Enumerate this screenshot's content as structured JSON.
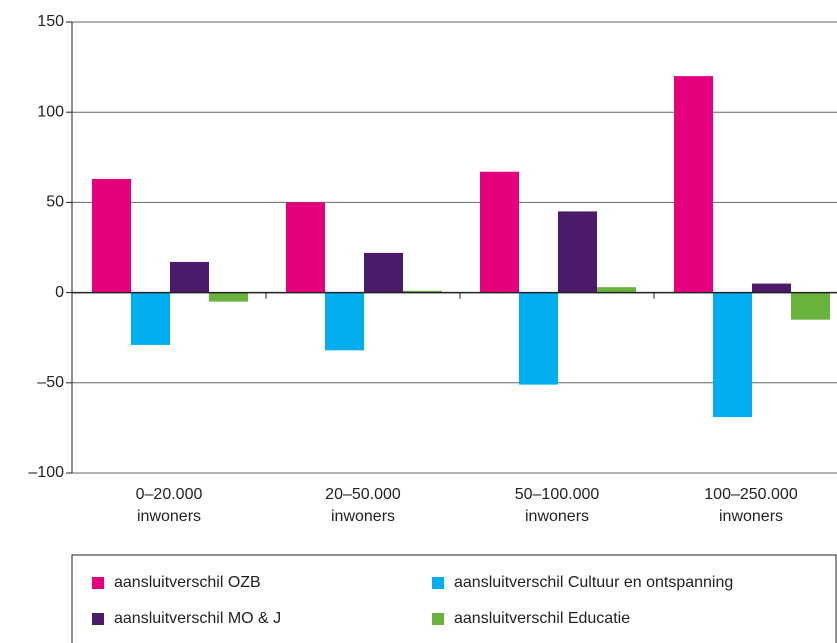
{
  "chart_data": {
    "type": "bar",
    "categories": [
      "0–20.000\ninwoners",
      "20–50.000\ninwoners",
      "50–100.000\ninwoners",
      "100–250.000\ninwoners"
    ],
    "series": [
      {
        "name": "aansluitverschil OZB",
        "color": "#e5007d",
        "values": [
          63,
          50,
          67,
          120
        ]
      },
      {
        "name": "aansluitverschil Cultuur en ontspanning",
        "color": "#00aeef",
        "values": [
          -29,
          -32,
          -51,
          -69
        ]
      },
      {
        "name": "aansluitverschil MO & J",
        "color": "#4b1a6b",
        "values": [
          17,
          22,
          45,
          5
        ]
      },
      {
        "name": "aansluitverschil Educatie",
        "color": "#6ab23e",
        "values": [
          -5,
          1,
          3,
          -15
        ]
      }
    ],
    "ylim": [
      -100,
      150
    ],
    "yticks": [
      {
        "value": -100,
        "label": "–100"
      },
      {
        "value": -50,
        "label": "–50"
      },
      0,
      50,
      100,
      150
    ],
    "grid": true
  }
}
